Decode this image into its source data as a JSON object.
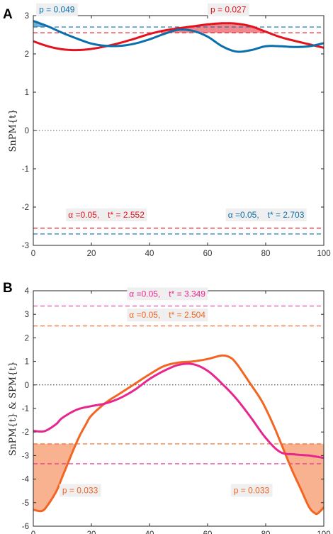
{
  "chart_data": [
    {
      "panel": "A",
      "type": "line",
      "ylabel": "SnPM{t}",
      "xlim": [
        0,
        100
      ],
      "ylim": [
        -3,
        3
      ],
      "xticks": [
        "0",
        "20",
        "40",
        "60",
        "80",
        "100"
      ],
      "yticks": [
        "-3",
        "-2",
        "-1",
        "0",
        "1",
        "2",
        "3"
      ],
      "series": [
        {
          "color": "#e3121c",
          "x": [
            0,
            5,
            10,
            15,
            20,
            25,
            30,
            35,
            40,
            45,
            50,
            55,
            60,
            65,
            70,
            75,
            80,
            85,
            90,
            95,
            100
          ],
          "y": [
            2.33,
            2.2,
            2.12,
            2.1,
            2.13,
            2.2,
            2.29,
            2.4,
            2.52,
            2.61,
            2.67,
            2.72,
            2.77,
            2.8,
            2.79,
            2.72,
            2.58,
            2.44,
            2.34,
            2.25,
            2.16
          ]
        },
        {
          "color": "#0a6fad",
          "x": [
            0,
            5,
            10,
            15,
            20,
            25,
            30,
            35,
            40,
            45,
            50,
            55,
            60,
            65,
            70,
            75,
            80,
            85,
            90,
            95,
            100
          ],
          "y": [
            2.86,
            2.72,
            2.55,
            2.4,
            2.27,
            2.21,
            2.21,
            2.27,
            2.38,
            2.52,
            2.63,
            2.6,
            2.45,
            2.2,
            2.06,
            2.1,
            2.2,
            2.2,
            2.18,
            2.2,
            2.28
          ]
        }
      ],
      "thresholds": [
        {
          "y": 2.552,
          "color": "#e3121c"
        },
        {
          "y": -2.552,
          "color": "#e3121c"
        },
        {
          "y": 2.703,
          "color": "#0a6fad"
        },
        {
          "y": -2.703,
          "color": "#0a6fad"
        },
        {
          "y": 0,
          "color": "#555555",
          "style": "dotted"
        }
      ],
      "clusters": [
        {
          "series": 1,
          "x_range": [
            0,
            5
          ],
          "threshold": 2.703,
          "color": "#0a6fad",
          "opacity": 0.55
        },
        {
          "series": 0,
          "x_range": [
            45,
            82
          ],
          "threshold": 2.552,
          "color": "#e3121c",
          "opacity": 0.5
        }
      ],
      "annotations": [
        {
          "text": "p = 0.049",
          "x": 1,
          "y": 3.08,
          "color": "#0a6fad"
        },
        {
          "text": "p = 0.027",
          "x": 60,
          "y": 3.08,
          "color": "#e3121c"
        }
      ],
      "alpha_labels": [
        {
          "alpha": "α",
          "alpha_text": " =0.05,",
          "tstar": "t* = 2.552",
          "x": 12,
          "y": -2.28,
          "color": "#e3121c"
        },
        {
          "alpha": "α",
          "alpha_text": " =0.05,",
          "tstar": "t* = 2.703",
          "x": 67,
          "y": -2.28,
          "color": "#0a6fad"
        }
      ]
    },
    {
      "panel": "B",
      "type": "line",
      "ylabel": "SnPM{t} & SPM{t}",
      "xlim": [
        0,
        100
      ],
      "ylim": [
        -6,
        4
      ],
      "xticks": [
        "0",
        "20",
        "40",
        "60",
        "80",
        "100"
      ],
      "yticks": [
        "-6",
        "-5",
        "-4",
        "-3",
        "-2",
        "-1",
        "0",
        "1",
        "2",
        "3",
        "4"
      ],
      "series": [
        {
          "color": "#f26522",
          "x": [
            0,
            3,
            5,
            8,
            10,
            12,
            14,
            16,
            18,
            20,
            25,
            30,
            35,
            40,
            45,
            50,
            55,
            60,
            65,
            68,
            70,
            72,
            75,
            78,
            80,
            83,
            86,
            89,
            92,
            95,
            97,
            98,
            100
          ],
          "y": [
            -5.3,
            -5.35,
            -5.1,
            -4.5,
            -3.9,
            -3.3,
            -2.7,
            -2.15,
            -1.7,
            -1.3,
            -0.75,
            -0.35,
            0.05,
            0.45,
            0.8,
            0.95,
            1.0,
            1.1,
            1.25,
            1.15,
            0.9,
            0.55,
            0.0,
            -0.55,
            -1.0,
            -1.8,
            -2.7,
            -3.6,
            -4.4,
            -5.2,
            -5.45,
            -5.45,
            -5.2
          ]
        },
        {
          "color": "#e8278e",
          "x": [
            0,
            3,
            5,
            8,
            10,
            15,
            20,
            25,
            30,
            35,
            40,
            45,
            50,
            55,
            60,
            65,
            70,
            75,
            80,
            85,
            90,
            95,
            100
          ],
          "y": [
            -1.95,
            -1.98,
            -1.9,
            -1.65,
            -1.4,
            -1.05,
            -0.9,
            -0.78,
            -0.55,
            -0.2,
            0.25,
            0.6,
            0.85,
            0.88,
            0.6,
            0.05,
            -0.6,
            -1.4,
            -2.25,
            -2.85,
            -2.95,
            -3.0,
            -3.1
          ]
        }
      ],
      "thresholds": [
        {
          "y": 3.349,
          "color": "#e8278e"
        },
        {
          "y": -3.349,
          "color": "#e8278e"
        },
        {
          "y": 2.504,
          "color": "#f26522"
        },
        {
          "y": -2.504,
          "color": "#f26522"
        },
        {
          "y": 0,
          "color": "#222222",
          "style": "dotted"
        }
      ],
      "clusters": [
        {
          "series": 0,
          "x_range": [
            0,
            15
          ],
          "threshold": -2.504,
          "color": "#f26522",
          "opacity": 0.5
        },
        {
          "series": 0,
          "x_range": [
            85,
            100
          ],
          "threshold": -2.504,
          "color": "#f26522",
          "opacity": 0.5
        }
      ],
      "annotations": [
        {
          "text": "p = 0.033",
          "x": 9,
          "y": -4.6,
          "color": "#f26522"
        },
        {
          "text": "p = 0.033",
          "x": 68,
          "y": -4.6,
          "color": "#f26522"
        }
      ],
      "alpha_labels": [
        {
          "alpha": "α",
          "alpha_text": " =0.05,",
          "tstar": "t* = 3.349",
          "x": 33,
          "y": 3.75,
          "color": "#e8278e"
        },
        {
          "alpha": "α",
          "alpha_text": " =0.05,",
          "tstar": "t* = 2.504",
          "x": 33,
          "y": 2.85,
          "color": "#f26522"
        }
      ]
    }
  ]
}
